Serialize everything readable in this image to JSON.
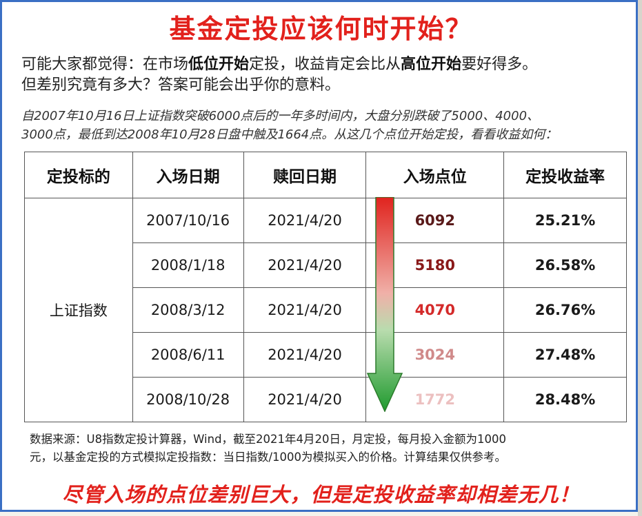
{
  "title": "基金定投应该何时开始？",
  "intro": {
    "line1_a": "可能大家都觉得：在市场",
    "line1_b": "低位开始",
    "line1_c": "定投，收益肯定会比从",
    "line1_d": "高位开始",
    "line1_e": "要好得多。",
    "line2": "但差别究竟有多大？答案可能会出乎你的意料。"
  },
  "note": {
    "line1": "自2007年10月16日上证指数突破6000点后的一年多时间内，大盘分别跌破了5000、4000、",
    "line2": "3000点，最低到达2008年10月28日盘中触及1664点。从这几个点位开始定投，看看收益如何："
  },
  "table": {
    "headers": [
      "定投标的",
      "入场日期",
      "赎回日期",
      "入场点位",
      "定投收益率"
    ],
    "target": "上证指数",
    "rows": [
      {
        "entry_date": "2007/10/16",
        "redeem_date": "2021/4/20",
        "entry_point": "6092",
        "return": "25.21%",
        "point_color": "#5a1a1a"
      },
      {
        "entry_date": "2008/1/18",
        "redeem_date": "2021/4/20",
        "entry_point": "5180",
        "return": "26.58%",
        "point_color": "#8a1a1a"
      },
      {
        "entry_date": "2008/3/12",
        "redeem_date": "2021/4/20",
        "entry_point": "4070",
        "return": "26.76%",
        "point_color": "#d42a2a"
      },
      {
        "entry_date": "2008/6/11",
        "redeem_date": "2021/4/20",
        "entry_point": "3024",
        "return": "27.48%",
        "point_color": "#d08a8a"
      },
      {
        "entry_date": "2008/10/28",
        "redeem_date": "2021/4/20",
        "entry_point": "1772",
        "return": "28.48%",
        "point_color": "#ecc0c0"
      }
    ]
  },
  "footer": {
    "line1": "数据来源：U8指数定投计算器，Wind，截至2021年4月20日，月定投，每月投入金额为1000",
    "line2": "元，以基金定投的方式模拟定投指数：当日指数/1000为模拟买入的价格。计算结果仅供参考。"
  },
  "conclusion": "尽管入场的点位差别巨大，但是定投收益率却相差无几！",
  "colors": {
    "title_red": "#e2211c",
    "frame_blue": "#3a6fc4",
    "arrow_top": "#e0231e",
    "arrow_bottom": "#1f9a2e"
  },
  "icons": {
    "arrow": "down-arrow-icon"
  }
}
